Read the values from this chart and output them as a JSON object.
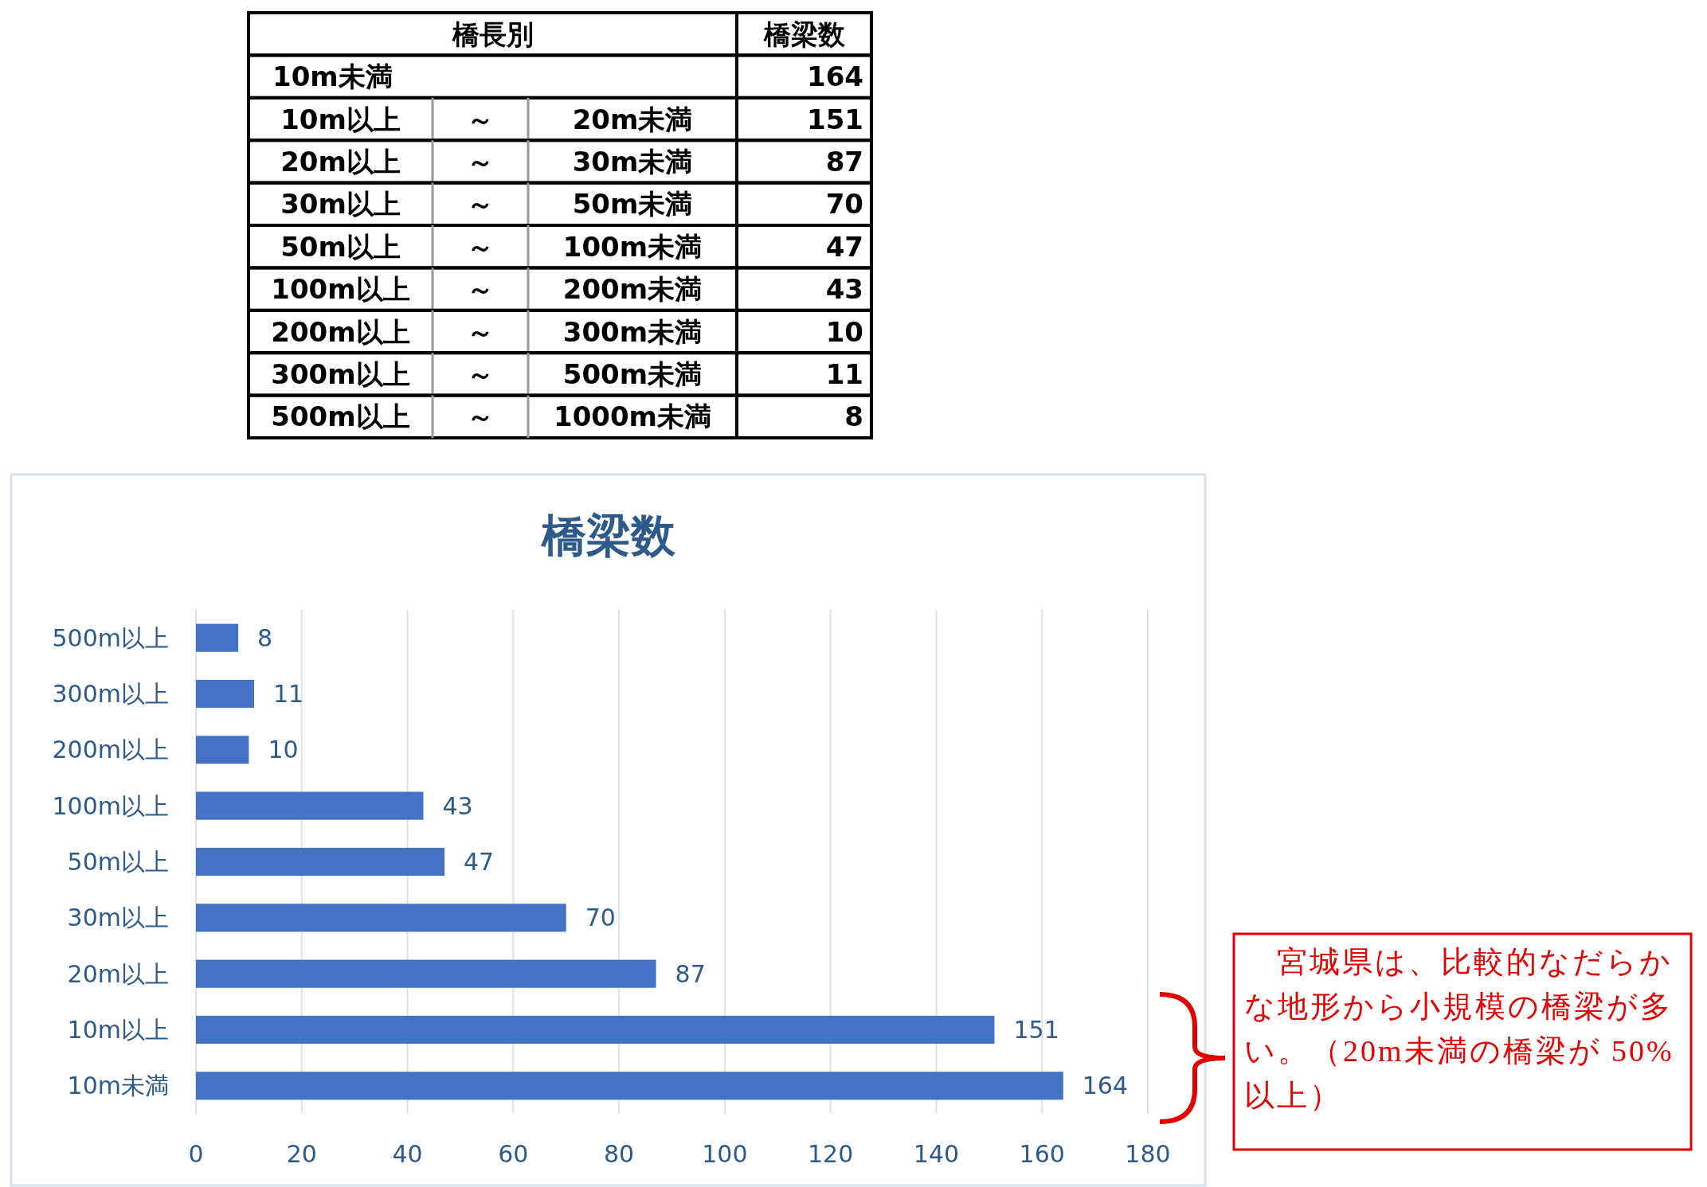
{
  "chart_data": {
    "type": "bar",
    "orientation": "horizontal",
    "title": "橋梁数",
    "categories": [
      "500m以上",
      "300m以上",
      "200m以上",
      "100m以上",
      "50m以上",
      "30m以上",
      "20m以上",
      "10m以上",
      "10m未満"
    ],
    "values": [
      8,
      11,
      10,
      43,
      47,
      70,
      87,
      151,
      164
    ],
    "color": "#4472c4",
    "xlim": [
      0,
      180
    ],
    "xticks": [
      0,
      20,
      40,
      60,
      80,
      100,
      120,
      140,
      160,
      180
    ],
    "grid": "x",
    "data_labels": true,
    "annotations": [
      "橋長別",
      "橋梁数",
      "10m未満",
      "164",
      "10m以上",
      "～",
      "20m未満",
      "151",
      "20m以上",
      "～",
      "30m未満",
      "87",
      "30m以上",
      "～",
      "50m未満",
      "70",
      "50m以上",
      "～",
      "100m未満",
      "47",
      "100m以上",
      "～",
      "200m未満",
      "43",
      "200m以上",
      "～",
      "300m未満",
      "10",
      "300m以上",
      "～",
      "500m未満",
      "11",
      "500m以上",
      "～",
      "1000m未満",
      "8",
      "　宮城県は、比較的なだらかな地形から小規模の橋梁が多い。（20m未満の橋梁が 50%以上）"
    ]
  }
}
